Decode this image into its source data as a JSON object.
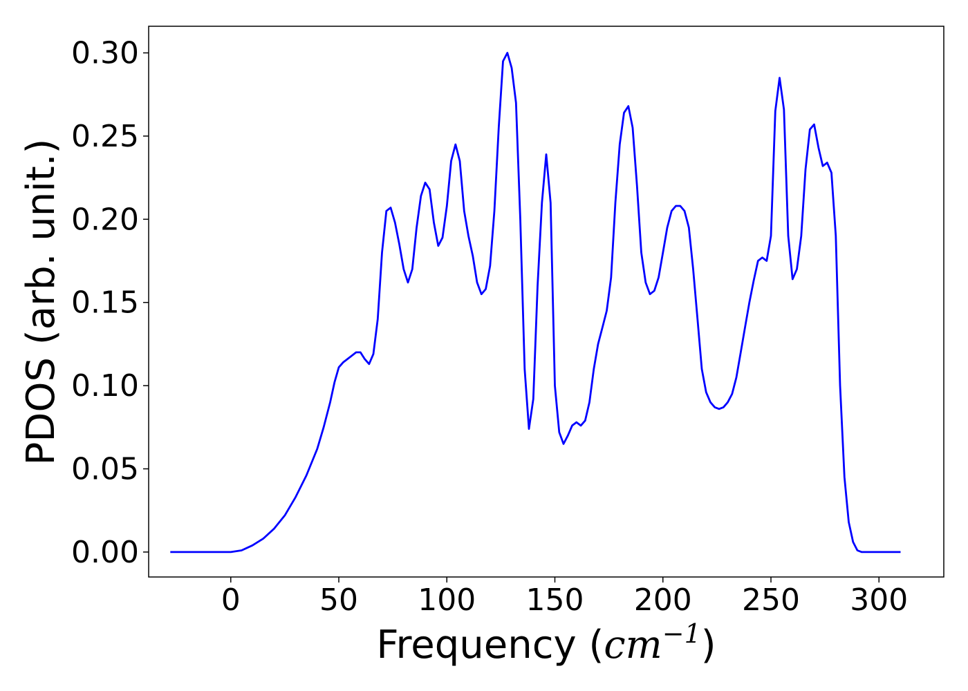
{
  "chart_data": {
    "type": "line",
    "title": "",
    "xlabel": "Frequency ",
    "xlabel_math": "cm",
    "xlabel_exponent": "−1",
    "ylabel": "PDOS (arb. unit.)",
    "xlim": [
      -38,
      330
    ],
    "ylim": [
      -0.015,
      0.316
    ],
    "xticks": [
      0,
      50,
      100,
      150,
      200,
      250,
      300
    ],
    "yticks": [
      0.0,
      0.05,
      0.1,
      0.15,
      0.2,
      0.25,
      0.3
    ],
    "xtick_labels": [
      "0",
      "50",
      "100",
      "150",
      "200",
      "250",
      "300"
    ],
    "ytick_labels": [
      "0.00",
      "0.05",
      "0.10",
      "0.15",
      "0.20",
      "0.25",
      "0.30"
    ],
    "grid": false,
    "legend": "none",
    "series": [
      {
        "color": "#0000ff",
        "x": [
          -28,
          -10,
          0,
          5,
          10,
          15,
          20,
          25,
          30,
          35,
          40,
          43,
          46,
          48,
          50,
          52,
          54,
          56,
          58,
          60,
          62,
          64,
          66,
          68,
          70,
          72,
          74,
          76,
          78,
          80,
          82,
          84,
          86,
          88,
          90,
          92,
          94,
          96,
          98,
          100,
          102,
          104,
          106,
          108,
          110,
          112,
          114,
          116,
          118,
          120,
          122,
          124,
          126,
          128,
          130,
          132,
          134,
          136,
          138,
          140,
          142,
          144,
          146,
          148,
          150,
          152,
          154,
          156,
          158,
          160,
          162,
          164,
          166,
          168,
          170,
          172,
          174,
          176,
          178,
          180,
          182,
          184,
          186,
          188,
          190,
          192,
          194,
          196,
          198,
          200,
          202,
          204,
          206,
          208,
          210,
          212,
          214,
          216,
          218,
          220,
          222,
          224,
          226,
          228,
          230,
          232,
          234,
          236,
          238,
          240,
          242,
          244,
          246,
          248,
          250,
          252,
          254,
          256,
          258,
          260,
          262,
          264,
          266,
          268,
          270,
          272,
          274,
          276,
          278,
          280,
          282,
          284,
          286,
          288,
          290,
          292,
          295,
          300,
          310
        ],
        "y": [
          0.0,
          0.0,
          0.0,
          0.001,
          0.004,
          0.008,
          0.014,
          0.022,
          0.033,
          0.046,
          0.062,
          0.075,
          0.09,
          0.102,
          0.111,
          0.114,
          0.116,
          0.118,
          0.12,
          0.12,
          0.116,
          0.113,
          0.119,
          0.14,
          0.18,
          0.205,
          0.207,
          0.198,
          0.185,
          0.17,
          0.162,
          0.17,
          0.195,
          0.214,
          0.222,
          0.218,
          0.198,
          0.184,
          0.189,
          0.208,
          0.235,
          0.245,
          0.235,
          0.205,
          0.19,
          0.178,
          0.162,
          0.155,
          0.158,
          0.172,
          0.205,
          0.255,
          0.295,
          0.3,
          0.291,
          0.27,
          0.2,
          0.11,
          0.074,
          0.092,
          0.16,
          0.21,
          0.239,
          0.21,
          0.1,
          0.072,
          0.065,
          0.07,
          0.076,
          0.078,
          0.076,
          0.079,
          0.09,
          0.11,
          0.125,
          0.135,
          0.145,
          0.165,
          0.21,
          0.245,
          0.264,
          0.268,
          0.255,
          0.22,
          0.18,
          0.162,
          0.155,
          0.157,
          0.165,
          0.18,
          0.195,
          0.205,
          0.208,
          0.208,
          0.205,
          0.195,
          0.17,
          0.14,
          0.11,
          0.096,
          0.09,
          0.087,
          0.086,
          0.087,
          0.09,
          0.095,
          0.105,
          0.12,
          0.135,
          0.15,
          0.163,
          0.175,
          0.177,
          0.175,
          0.19,
          0.265,
          0.285,
          0.266,
          0.19,
          0.164,
          0.17,
          0.19,
          0.23,
          0.254,
          0.257,
          0.243,
          0.232,
          0.234,
          0.228,
          0.19,
          0.1,
          0.045,
          0.018,
          0.006,
          0.001,
          0.0,
          0.0,
          0.0,
          0.0
        ]
      }
    ]
  }
}
